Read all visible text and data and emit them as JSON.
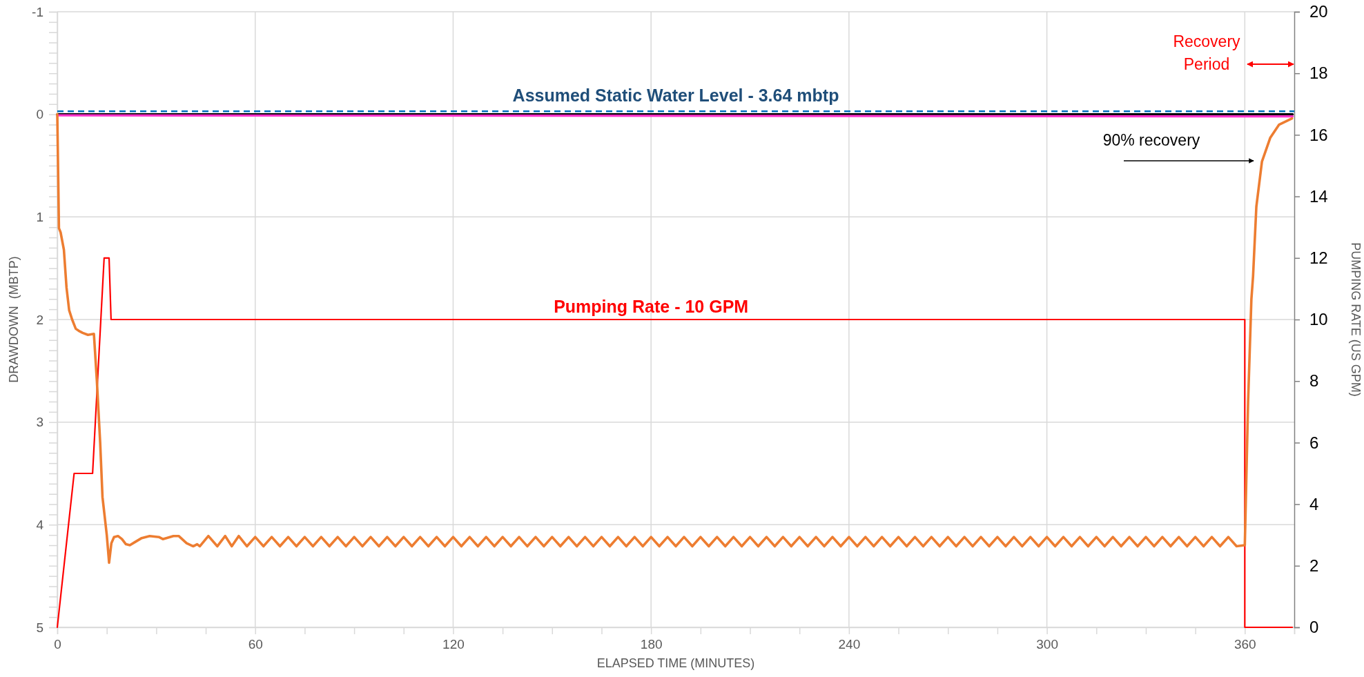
{
  "chart_data": {
    "type": "line",
    "xlabel": "ELAPSED TIME (MINUTES)",
    "ylabel": "DRAWDOWN  (MBTP)",
    "y2label": "PUMPING RATE (US GPM)",
    "xlim": [
      0,
      375
    ],
    "xticks": [
      0,
      {
        "value": 15,
        "label": null
      },
      {
        "value": 30,
        "label": null
      },
      {
        "value": 45,
        "label": null
      },
      60,
      {
        "value": 75,
        "label": null
      },
      {
        "value": 90,
        "label": null
      },
      {
        "value": 105,
        "label": null
      },
      120,
      {
        "value": 135,
        "label": null
      },
      {
        "value": 150,
        "label": null
      },
      {
        "value": 165,
        "label": null
      },
      180,
      {
        "value": 195,
        "label": null
      },
      {
        "value": 210,
        "label": null
      },
      {
        "value": 225,
        "label": null
      },
      240,
      {
        "value": 255,
        "label": null
      },
      {
        "value": 270,
        "label": null
      },
      {
        "value": 285,
        "label": null
      },
      300,
      {
        "value": 315,
        "label": null
      },
      {
        "value": 330,
        "label": null
      },
      {
        "value": 345,
        "label": null
      },
      360,
      {
        "value": 375,
        "label": null
      }
    ],
    "ylim": [
      5,
      -1
    ],
    "yticks": [
      -1,
      {
        "value": -0.9,
        "label": null
      },
      {
        "value": -0.8,
        "label": null
      },
      {
        "value": -0.7,
        "label": null
      },
      {
        "value": -0.6,
        "label": null
      },
      {
        "value": -0.5,
        "label": null
      },
      {
        "value": -0.4,
        "label": null
      },
      {
        "value": -0.3,
        "label": null
      },
      {
        "value": -0.2,
        "label": null
      },
      {
        "value": -0.1,
        "label": null
      },
      0,
      {
        "value": 0.1,
        "label": null
      },
      {
        "value": 0.2,
        "label": null
      },
      {
        "value": 0.3,
        "label": null
      },
      {
        "value": 0.4,
        "label": null
      },
      {
        "value": 0.5,
        "label": null
      },
      {
        "value": 0.6,
        "label": null
      },
      {
        "value": 0.7,
        "label": null
      },
      {
        "value": 0.8,
        "label": null
      },
      {
        "value": 0.9,
        "label": null
      },
      1,
      {
        "value": 1.1,
        "label": null
      },
      {
        "value": 1.2,
        "label": null
      },
      {
        "value": 1.3,
        "label": null
      },
      {
        "value": 1.4,
        "label": null
      },
      {
        "value": 1.5,
        "label": null
      },
      {
        "value": 1.6,
        "label": null
      },
      {
        "value": 1.7,
        "label": null
      },
      {
        "value": 1.8,
        "label": null
      },
      {
        "value": 1.9,
        "label": null
      },
      2,
      {
        "value": 2.1,
        "label": null
      },
      {
        "value": 2.2,
        "label": null
      },
      {
        "value": 2.3,
        "label": null
      },
      {
        "value": 2.4,
        "label": null
      },
      {
        "value": 2.5,
        "label": null
      },
      {
        "value": 2.6,
        "label": null
      },
      {
        "value": 2.7,
        "label": null
      },
      {
        "value": 2.8,
        "label": null
      },
      {
        "value": 2.9,
        "label": null
      },
      3,
      {
        "value": 3.1,
        "label": null
      },
      {
        "value": 3.2,
        "label": null
      },
      {
        "value": 3.3,
        "label": null
      },
      {
        "value": 3.4,
        "label": null
      },
      {
        "value": 3.5,
        "label": null
      },
      {
        "value": 3.6,
        "label": null
      },
      {
        "value": 3.7,
        "label": null
      },
      {
        "value": 3.8,
        "label": null
      },
      {
        "value": 3.9,
        "label": null
      },
      4,
      {
        "value": 4.1,
        "label": null
      },
      {
        "value": 4.2,
        "label": null
      },
      {
        "value": 4.3,
        "label": null
      },
      {
        "value": 4.4,
        "label": null
      },
      {
        "value": 4.5,
        "label": null
      },
      {
        "value": 4.6,
        "label": null
      },
      {
        "value": 4.7,
        "label": null
      },
      {
        "value": 4.8,
        "label": null
      },
      {
        "value": 4.9,
        "label": null
      },
      5
    ],
    "y2lim": [
      0,
      20
    ],
    "y2ticks": [
      0,
      2,
      4,
      6,
      8,
      10,
      12,
      14,
      16,
      18,
      20
    ],
    "grid": true,
    "marker": "none",
    "line_style": "solid",
    "ref_lines": [
      {
        "axis": "y",
        "value": -0.03,
        "label": "Assumed Static Water Level - 3.64 mbtp",
        "color": "#0070c0",
        "line_style": "dashed"
      }
    ],
    "annotations": [
      "Recovery Period",
      "90% recovery",
      {
        "text": "Pumping Rate - 10 GPM",
        "x": 180,
        "y": 2
      }
    ],
    "series": [
      {
        "color": "#000000",
        "x": [
          0,
          180,
          374.5
        ],
        "values": [
          0,
          0,
          0
        ]
      },
      {
        "color": "#ff33cc",
        "x": [
          0,
          374.5
        ],
        "values": [
          0.01,
          0.02
        ]
      },
      {
        "color": "#ff0000",
        "axis": "y2",
        "x": [
          0,
          5.1,
          10.7,
          14.2,
          15.7,
          16.3,
          360,
          360,
          374.4
        ],
        "values": [
          0,
          5,
          5,
          12,
          12,
          10,
          10,
          0,
          0
        ]
      },
      {
        "color": "#ed7d31",
        "x": [
          0,
          0.5,
          1,
          2,
          2.8,
          3.6,
          4.5,
          5.6,
          6.5,
          7.7,
          9.3,
          11.1,
          12,
          13,
          13.7,
          15,
          15.7,
          16.4,
          17.2,
          18.4,
          19.6,
          20.8,
          22,
          23.5,
          25.6,
          28,
          30.8,
          32,
          35.2,
          36.8,
          39.2,
          41.2,
          42.4,
          43.2,
          45.8,
          48.5,
          50.9,
          52.9,
          55,
          57.5,
          60,
          62.5,
          65,
          67.5,
          70,
          72.5,
          75,
          77.5,
          80,
          82.5,
          85,
          87.5,
          90,
          92.5,
          95,
          97.5,
          100,
          102.5,
          105,
          107.5,
          110,
          112.5,
          115,
          117.5,
          120,
          122.5,
          125,
          127.5,
          130,
          132.5,
          135,
          137.5,
          140,
          142.5,
          145,
          147.5,
          150,
          152.5,
          155,
          157.5,
          160,
          162.5,
          165,
          167.5,
          170,
          172.5,
          175,
          177.5,
          180,
          182.5,
          185,
          187.5,
          190,
          192.5,
          195,
          197.5,
          200,
          202.5,
          205,
          207.5,
          210,
          212.5,
          215,
          217.5,
          220,
          222.5,
          225,
          227.5,
          230,
          232.5,
          235,
          237.5,
          240,
          242.5,
          245,
          247.5,
          250,
          252.5,
          255,
          257.5,
          260,
          262.5,
          265,
          267.5,
          270,
          272.5,
          275,
          277.5,
          280,
          282.5,
          285,
          287.5,
          290,
          292.5,
          295,
          297.5,
          300,
          302.5,
          305,
          307.5,
          310,
          312.5,
          315,
          317.5,
          320,
          322.5,
          325,
          327.5,
          330,
          332.5,
          335,
          337.5,
          340,
          342.5,
          345,
          347.5,
          350,
          352.5,
          355,
          357.5,
          360,
          361,
          362,
          362.5,
          363.5,
          365.2,
          367.7,
          370.4,
          374.3
        ],
        "values": [
          0,
          1.11,
          1.15,
          1.32,
          1.69,
          1.91,
          2.0,
          2.09,
          2.11,
          2.13,
          2.15,
          2.14,
          2.6,
          3.2,
          3.73,
          4.1,
          4.37,
          4.18,
          4.12,
          4.11,
          4.14,
          4.19,
          4.2,
          4.17,
          4.13,
          4.11,
          4.12,
          4.14,
          4.11,
          4.11,
          4.18,
          4.21,
          4.19,
          4.21,
          4.11,
          4.21,
          4.11,
          4.21,
          4.11,
          4.21,
          4.12,
          4.21,
          4.12,
          4.21,
          4.12,
          4.21,
          4.12,
          4.21,
          4.12,
          4.21,
          4.12,
          4.21,
          4.12,
          4.21,
          4.12,
          4.21,
          4.12,
          4.21,
          4.12,
          4.21,
          4.12,
          4.21,
          4.12,
          4.21,
          4.12,
          4.21,
          4.12,
          4.21,
          4.12,
          4.21,
          4.12,
          4.21,
          4.12,
          4.21,
          4.12,
          4.21,
          4.12,
          4.21,
          4.12,
          4.21,
          4.12,
          4.21,
          4.12,
          4.21,
          4.12,
          4.21,
          4.12,
          4.21,
          4.12,
          4.21,
          4.12,
          4.21,
          4.12,
          4.21,
          4.12,
          4.21,
          4.12,
          4.21,
          4.12,
          4.21,
          4.12,
          4.21,
          4.12,
          4.21,
          4.12,
          4.21,
          4.12,
          4.21,
          4.12,
          4.21,
          4.12,
          4.21,
          4.12,
          4.21,
          4.12,
          4.21,
          4.12,
          4.21,
          4.12,
          4.21,
          4.12,
          4.21,
          4.12,
          4.21,
          4.12,
          4.21,
          4.12,
          4.21,
          4.12,
          4.21,
          4.12,
          4.21,
          4.12,
          4.21,
          4.12,
          4.21,
          4.12,
          4.21,
          4.12,
          4.21,
          4.12,
          4.21,
          4.12,
          4.21,
          4.12,
          4.21,
          4.12,
          4.21,
          4.12,
          4.21,
          4.12,
          4.21,
          4.12,
          4.21,
          4.12,
          4.21,
          4.12,
          4.21,
          4.12,
          4.21,
          4.2,
          2.8,
          1.8,
          1.58,
          0.9,
          0.46,
          0.23,
          0.1,
          0.04
        ]
      }
    ]
  }
}
